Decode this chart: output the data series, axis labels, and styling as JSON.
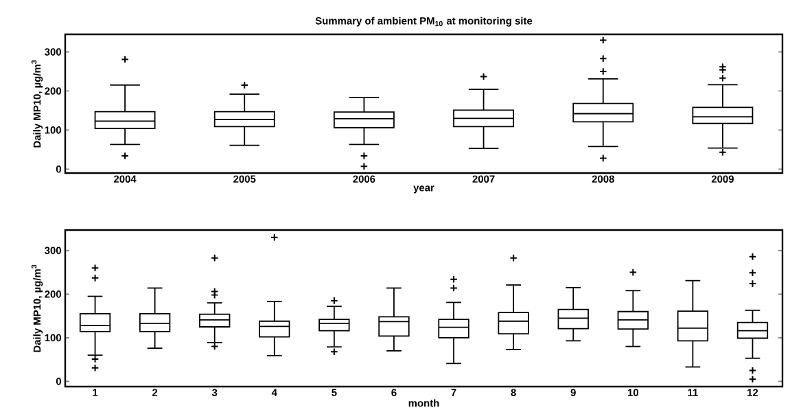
{
  "chart_data": [
    {
      "type": "box",
      "title": "Summary of ambient PM$_{10}$ at monitoring site",
      "xlabel": "year",
      "ylabel": "Daily MP10, µg/m$^{3}$",
      "categories": [
        "2004",
        "2005",
        "2006",
        "2007",
        "2008",
        "2009"
      ],
      "ylim": [
        -10,
        345
      ],
      "yticks": [
        0,
        100,
        200,
        300
      ],
      "marker": "cross",
      "series": [
        {
          "color": "#000000",
          "boxes": [
            {
              "low": 63,
              "q1": 104,
              "median": 123,
              "q3": 147,
              "high": 215,
              "outliers": [
                281,
                34
              ]
            },
            {
              "low": 61,
              "q1": 109,
              "median": 127,
              "q3": 147,
              "high": 192,
              "outliers": [
                215
              ]
            },
            {
              "low": 63,
              "q1": 106,
              "median": 129,
              "q3": 146,
              "high": 183,
              "outliers": [
                34,
                7
              ]
            },
            {
              "low": 53,
              "q1": 109,
              "median": 130,
              "q3": 151,
              "high": 204,
              "outliers": [
                237
              ]
            },
            {
              "low": 58,
              "q1": 121,
              "median": 142,
              "q3": 168,
              "high": 231,
              "outliers": [
                330,
                283,
                250,
                28
              ]
            },
            {
              "low": 54,
              "q1": 117,
              "median": 134,
              "q3": 158,
              "high": 216,
              "outliers": [
                262,
                254,
                233,
                43
              ]
            }
          ]
        }
      ]
    },
    {
      "type": "box",
      "xlabel": "month",
      "ylabel": "Daily MP10, µg/m$^{3}$",
      "categories": [
        "1",
        "2",
        "3",
        "4",
        "5",
        "6",
        "7",
        "8",
        "9",
        "10",
        "11",
        "12"
      ],
      "ylim": [
        -12,
        347
      ],
      "yticks": [
        0,
        100,
        200,
        300
      ],
      "marker": "cross",
      "series": [
        {
          "color": "#000000",
          "boxes": [
            {
              "low": 60,
              "q1": 114,
              "median": 128,
              "q3": 155,
              "high": 195,
              "outliers": [
                260,
                237,
                51,
                31
              ]
            },
            {
              "low": 76,
              "q1": 114,
              "median": 133,
              "q3": 155,
              "high": 214
            },
            {
              "low": 89,
              "q1": 125,
              "median": 141,
              "q3": 154,
              "high": 180,
              "outliers": [
                283,
                206,
                198,
                80
              ]
            },
            {
              "low": 59,
              "q1": 102,
              "median": 126,
              "q3": 138,
              "high": 183,
              "outliers": [
                330
              ]
            },
            {
              "low": 79,
              "q1": 116,
              "median": 133,
              "q3": 142,
              "high": 172,
              "outliers": [
                185,
                68
              ]
            },
            {
              "low": 70,
              "q1": 104,
              "median": 137,
              "q3": 148,
              "high": 214
            },
            {
              "low": 41,
              "q1": 100,
              "median": 124,
              "q3": 142,
              "high": 181,
              "outliers": [
                234,
                214
              ]
            },
            {
              "low": 73,
              "q1": 109,
              "median": 138,
              "q3": 158,
              "high": 221,
              "outliers": [
                283
              ]
            },
            {
              "low": 93,
              "q1": 121,
              "median": 145,
              "q3": 165,
              "high": 215
            },
            {
              "low": 80,
              "q1": 120,
              "median": 141,
              "q3": 160,
              "high": 208,
              "outliers": [
                250
              ]
            },
            {
              "low": 33,
              "q1": 93,
              "median": 122,
              "q3": 161,
              "high": 231
            },
            {
              "low": 53,
              "q1": 99,
              "median": 116,
              "q3": 135,
              "high": 163,
              "outliers": [
                286,
                249,
                224,
                25,
                5
              ]
            }
          ]
        }
      ]
    }
  ]
}
